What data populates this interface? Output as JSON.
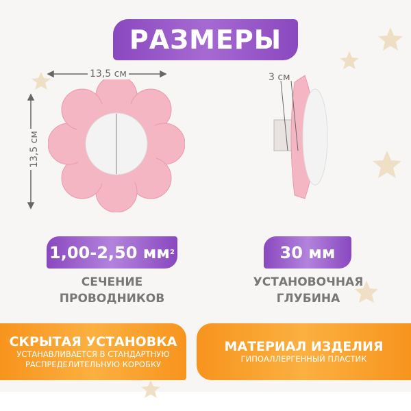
{
  "title": "РАЗМЕРЫ",
  "dimensions": {
    "width": "13,5 см",
    "height": "13,5 см",
    "depth": "3 см"
  },
  "specs": [
    {
      "value": "1,00-2,50 мм",
      "sup": "2",
      "label_line1": "СЕЧЕНИЕ",
      "label_line2": "ПРОВОДНИКОВ"
    },
    {
      "value": "30 мм",
      "label_line1": "УСТАНОВОЧНАЯ",
      "label_line2": "ГЛУБИНА"
    }
  ],
  "features": [
    {
      "title": "СКРЫТАЯ УСТАНОВКА",
      "line1": "УСТАНАВЛИВАЕТСЯ В СТАНДАРТНУЮ",
      "line2": "РАСПРЕДЕЛИТЕЛЬНУЮ КОРОБКУ"
    },
    {
      "title": "МАТЕРИАЛ ИЗДЕЛИЯ",
      "line1": "ГИПОАЛЛЕРГЕННЫЙ ПЛАСТИК"
    }
  ],
  "colors": {
    "purple": "#8a48bf",
    "orange": "#f7941d",
    "pink": "#f4b6c2",
    "star": "#ecd9b8"
  }
}
